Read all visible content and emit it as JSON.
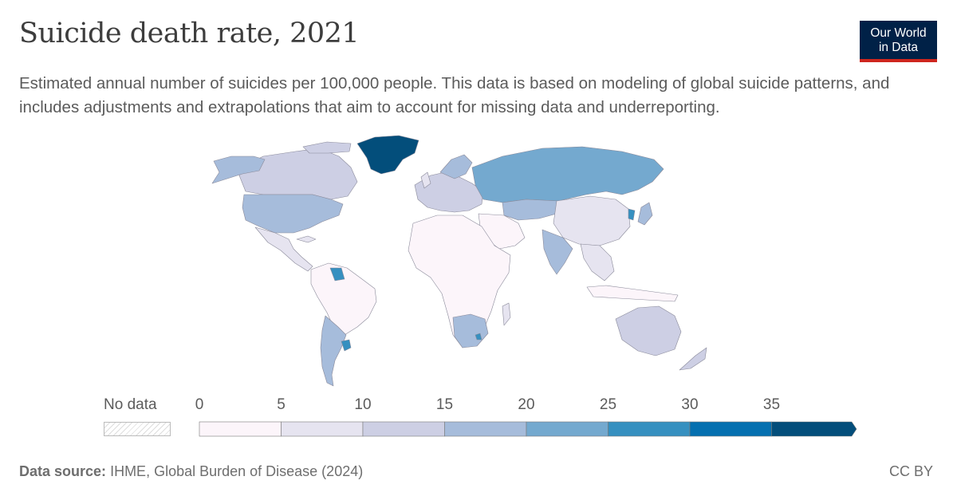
{
  "header": {
    "title": "Suicide death rate, 2021",
    "subtitle": "Estimated annual number of suicides per 100,000 people. This data is based on modeling of global suicide patterns, and includes adjustments and extrapolations that aim to account for missing data and underreporting."
  },
  "logo": {
    "line1": "Our World",
    "line2": "in Data"
  },
  "legend": {
    "no_data_label": "No data",
    "ticks": [
      "0",
      "5",
      "10",
      "15",
      "20",
      "25",
      "30",
      "35"
    ],
    "bins": [
      {
        "from": 0,
        "to": 5,
        "color": "#fcf5fa"
      },
      {
        "from": 5,
        "to": 10,
        "color": "#e6e4f0"
      },
      {
        "from": 10,
        "to": 15,
        "color": "#cdcfe4"
      },
      {
        "from": 15,
        "to": 20,
        "color": "#a6bcdb"
      },
      {
        "from": 20,
        "to": 25,
        "color": "#74a9cf"
      },
      {
        "from": 25,
        "to": 30,
        "color": "#3690c0"
      },
      {
        "from": 30,
        "to": 35,
        "color": "#0570b0"
      },
      {
        "from": 35,
        "to": null,
        "color": "#034e7b"
      }
    ]
  },
  "footer": {
    "source_label": "Data source:",
    "source_text": "IHME, Global Burden of Disease (2024)",
    "license": "CC BY"
  }
}
